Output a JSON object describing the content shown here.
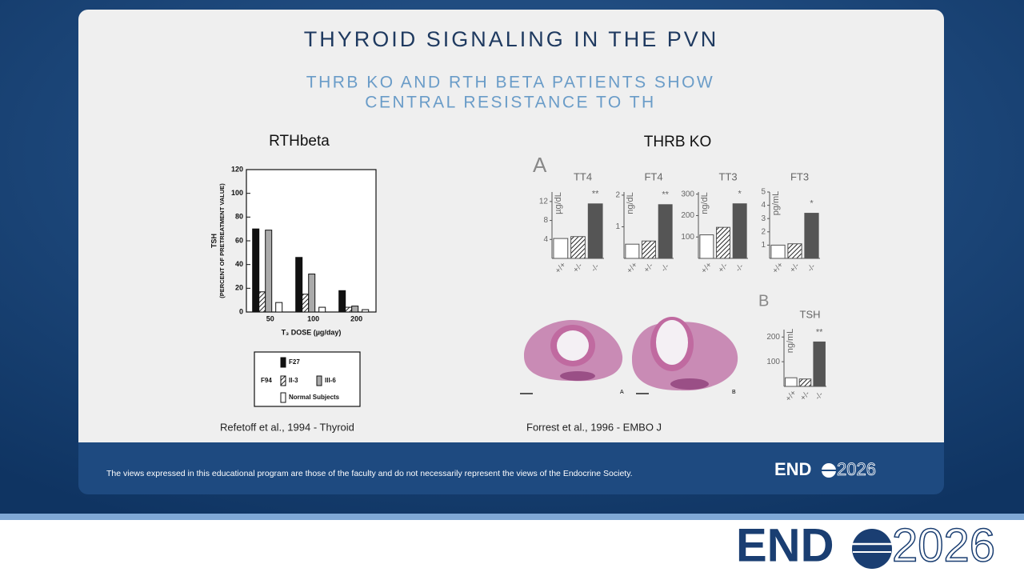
{
  "slide": {
    "title": "THYROID SIGNALING IN THE PVN",
    "subtitle_lines": [
      "THRB KO AND RTH BETA PATIENTS SHOW",
      "CENTRAL RESISTANCE TO TH"
    ],
    "left_heading": "RTHbeta",
    "right_heading": "THRB KO",
    "panel_a": "A",
    "panel_b": "B",
    "histology_labels": [
      "A",
      "B"
    ],
    "left_citation": "Refetoff et al., 1994 - Thyroid",
    "right_citation": "Forrest et al., 1996 - EMBO J",
    "disclaimer": "The views expressed in this educational program are those of the faculty and do not necessarily represent the views of the Endocrine Society.",
    "logo": {
      "name": "END",
      "year": "2026"
    }
  },
  "chart_data": [
    {
      "type": "bar",
      "y_label": [
        "TSH",
        "(PERCENT OF PRETREATMENT VALUE)"
      ],
      "x_label": "T₃ DOSE (µg/day)",
      "categories": [
        "50",
        "100",
        "200"
      ],
      "legend_group": "F94",
      "series": [
        {
          "name": "F27",
          "color": "#111111",
          "values": [
            70,
            46,
            18
          ]
        },
        {
          "name": "II-3",
          "color": "hatch",
          "values": [
            17,
            15,
            4
          ]
        },
        {
          "name": "III-6",
          "color": "#aaaaaa",
          "values": [
            69,
            32,
            5
          ]
        },
        {
          "name": "Normal Subjects",
          "color": "#ffffff",
          "values": [
            8,
            4,
            2
          ]
        }
      ],
      "ylim": [
        0,
        120
      ],
      "yticks": [
        0,
        20,
        40,
        60,
        80,
        100,
        120
      ]
    },
    {
      "type": "bar",
      "title": "TT4",
      "y_label": "µg/dL",
      "categories": [
        "+/+",
        "+/-",
        "-/-"
      ],
      "colors": [
        "#ffffff",
        "hatch",
        "#555555"
      ],
      "values": [
        4.2,
        4.6,
        11.5
      ],
      "annotation": "**",
      "ylim": [
        0,
        14
      ],
      "yticks": [
        4,
        8,
        12
      ]
    },
    {
      "type": "bar",
      "title": "FT4",
      "y_label": "ng/dL",
      "categories": [
        "+/+",
        "+/-",
        "-/-"
      ],
      "colors": [
        "#ffffff",
        "hatch",
        "#555555"
      ],
      "values": [
        0.45,
        0.55,
        1.7
      ],
      "annotation": "**",
      "ylim": [
        0,
        2.1
      ],
      "yticks": [
        1,
        2
      ]
    },
    {
      "type": "bar",
      "title": "TT3",
      "y_label": "ng/dL",
      "categories": [
        "+/+",
        "+/-",
        "-/-"
      ],
      "colors": [
        "#ffffff",
        "hatch",
        "#555555"
      ],
      "values": [
        110,
        145,
        255
      ],
      "annotation": "*",
      "ylim": [
        0,
        310
      ],
      "yticks": [
        100,
        200,
        300
      ]
    },
    {
      "type": "bar",
      "title": "FT3",
      "y_label": "pg/mL",
      "categories": [
        "+/+",
        "+/-",
        "-/-"
      ],
      "colors": [
        "#ffffff",
        "hatch",
        "#555555"
      ],
      "values": [
        1.0,
        1.1,
        3.4
      ],
      "annotation": "*",
      "ylim": [
        0,
        5
      ],
      "yticks": [
        1,
        2,
        3,
        4,
        5
      ]
    },
    {
      "type": "bar",
      "title": "TSH",
      "y_label": "ng/mL",
      "categories": [
        "+/+",
        "+/-",
        "-/-"
      ],
      "colors": [
        "#ffffff",
        "hatch",
        "#555555"
      ],
      "values": [
        35,
        30,
        180
      ],
      "annotation": "**",
      "ylim": [
        0,
        230
      ],
      "yticks": [
        100,
        200
      ]
    }
  ]
}
